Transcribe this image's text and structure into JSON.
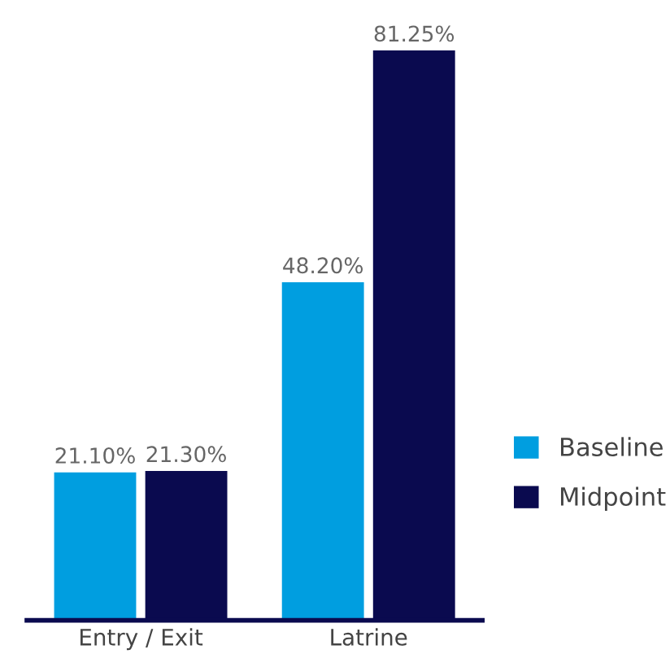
{
  "chart_data": {
    "type": "bar",
    "categories": [
      "Entry / Exit",
      "Latrine"
    ],
    "series": [
      {
        "name": "Baseline",
        "color": "#009ee0",
        "values": [
          21.1,
          48.2
        ],
        "value_labels": [
          "21.10%",
          "48.20%"
        ]
      },
      {
        "name": "Midpoint",
        "color": "#0a0a4f",
        "values": [
          21.3,
          81.25
        ],
        "value_labels": [
          "21.30%",
          "81.25%"
        ]
      }
    ],
    "legend": "right",
    "grid": false,
    "tick_labels": "x"
  }
}
